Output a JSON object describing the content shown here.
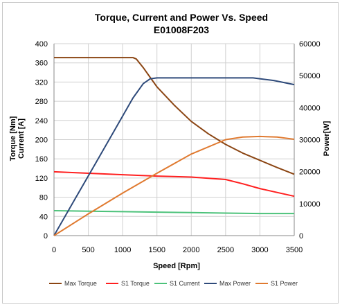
{
  "chart_data": {
    "type": "line",
    "title": "Torque, Current and Power Vs. Speed",
    "subtitle": "E01008F203",
    "xlabel": "Speed [Rpm]",
    "ylabel_left_1": "Torque [Nm]",
    "ylabel_left_2": "Current [A]",
    "ylabel_right": "Power[W]",
    "xlim": [
      0,
      3500
    ],
    "ylim_left": [
      0,
      400
    ],
    "ylim_right": [
      0,
      60000
    ],
    "x_ticks": [
      "0",
      "500",
      "1000",
      "1500",
      "2000",
      "2500",
      "3000",
      "3500"
    ],
    "y_left_ticks": [
      "0",
      "40",
      "80",
      "120",
      "160",
      "200",
      "240",
      "280",
      "320",
      "360",
      "400"
    ],
    "y_right_ticks": [
      "0",
      "10000",
      "20000",
      "30000",
      "40000",
      "50000",
      "60000"
    ],
    "grid": true,
    "legend_position": "bottom",
    "series": [
      {
        "name": "Max Torque",
        "axis": "left",
        "color": "#8B4513",
        "points": [
          [
            0,
            371
          ],
          [
            500,
            371
          ],
          [
            1000,
            371
          ],
          [
            1150,
            371
          ],
          [
            1200,
            368
          ],
          [
            1300,
            350
          ],
          [
            1400,
            330
          ],
          [
            1500,
            310
          ],
          [
            1750,
            272
          ],
          [
            2000,
            238
          ],
          [
            2250,
            212
          ],
          [
            2500,
            190
          ],
          [
            2750,
            172
          ],
          [
            3000,
            157
          ],
          [
            3250,
            142
          ],
          [
            3500,
            128
          ]
        ]
      },
      {
        "name": "S1 Torque",
        "axis": "left",
        "color": "#FF1F1F",
        "points": [
          [
            0,
            133
          ],
          [
            500,
            130
          ],
          [
            1000,
            127
          ],
          [
            1500,
            124
          ],
          [
            2000,
            122
          ],
          [
            2500,
            117
          ],
          [
            2750,
            108
          ],
          [
            3000,
            98
          ],
          [
            3250,
            90
          ],
          [
            3500,
            82
          ]
        ]
      },
      {
        "name": "S1 Current",
        "axis": "left",
        "color": "#4CC27A",
        "points": [
          [
            0,
            52
          ],
          [
            500,
            51
          ],
          [
            1000,
            50
          ],
          [
            1500,
            49
          ],
          [
            2000,
            48
          ],
          [
            2500,
            47
          ],
          [
            3000,
            46
          ],
          [
            3500,
            46
          ]
        ]
      },
      {
        "name": "Max Power",
        "axis": "right",
        "color": "#2E4A7A",
        "points": [
          [
            0,
            0
          ],
          [
            300,
            11200
          ],
          [
            600,
            22400
          ],
          [
            900,
            33600
          ],
          [
            1150,
            43000
          ],
          [
            1300,
            47500
          ],
          [
            1400,
            49000
          ],
          [
            1500,
            49300
          ],
          [
            2000,
            49300
          ],
          [
            2500,
            49300
          ],
          [
            2900,
            49300
          ],
          [
            3200,
            48500
          ],
          [
            3500,
            47200
          ]
        ]
      },
      {
        "name": "S1 Power",
        "axis": "right",
        "color": "#E07A30",
        "points": [
          [
            0,
            0
          ],
          [
            500,
            6800
          ],
          [
            1000,
            13300
          ],
          [
            1500,
            19500
          ],
          [
            2000,
            25500
          ],
          [
            2500,
            30000
          ],
          [
            2750,
            30800
          ],
          [
            3000,
            31000
          ],
          [
            3250,
            30800
          ],
          [
            3500,
            30100
          ]
        ]
      }
    ]
  }
}
